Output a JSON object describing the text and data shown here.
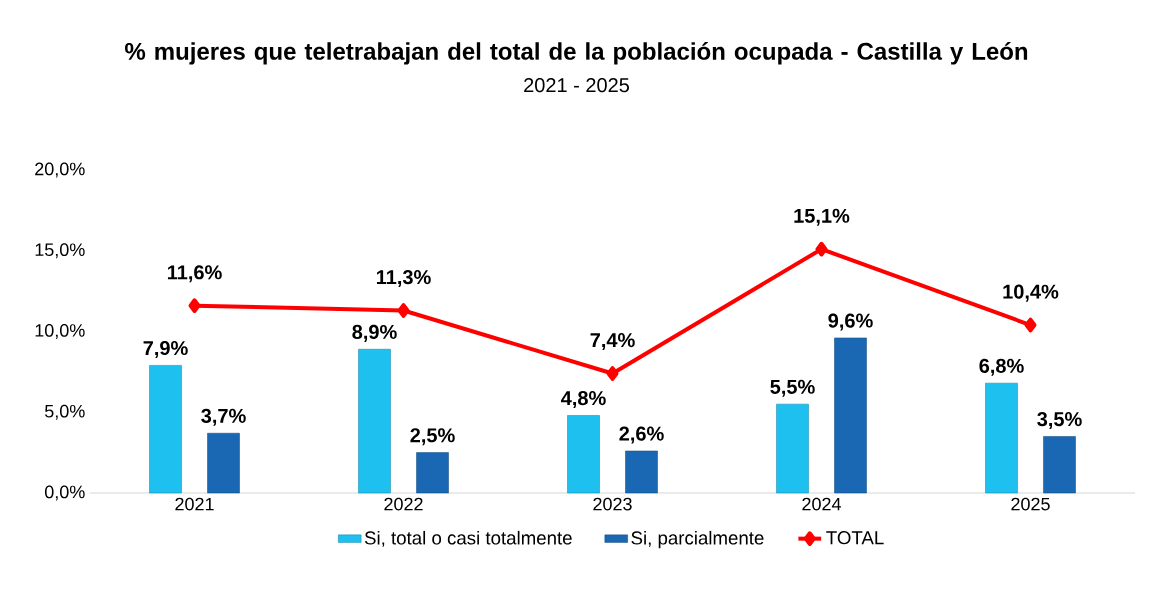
{
  "chart_data": {
    "type": "bar",
    "title": "% mujeres que teletrabajan del total de la población ocupada - Castilla y León",
    "subtitle": "2021 - 2025",
    "categories": [
      "2021",
      "2022",
      "2023",
      "2024",
      "2025"
    ],
    "series": [
      {
        "name": "Si, total o casi totalmente",
        "color": "#1ec0f0",
        "values": [
          7.9,
          8.9,
          4.8,
          5.5,
          6.8
        ],
        "value_labels": [
          "7,9%",
          "8,9%",
          "4,8%",
          "5,5%",
          "6,8%"
        ]
      },
      {
        "name": "Si, parcialmente",
        "color": "#1a68b4",
        "values": [
          3.7,
          2.5,
          2.6,
          9.6,
          3.5
        ],
        "value_labels": [
          "3,7%",
          "2,5%",
          "2,6%",
          "9,6%",
          "3,5%"
        ]
      },
      {
        "name": "TOTAL",
        "type": "line",
        "color": "#ff0000",
        "marker": "diamond",
        "values": [
          11.6,
          11.3,
          7.4,
          15.1,
          10.4
        ],
        "value_labels": [
          "11,6%",
          "11,3%",
          "7,4%",
          "15,1%",
          "10,4%"
        ]
      }
    ],
    "ylim": [
      0,
      20
    ],
    "yticks": [
      {
        "value": 0,
        "label": "0,0%"
      },
      {
        "value": 5,
        "label": "5,0%"
      },
      {
        "value": 10,
        "label": "10,0%"
      },
      {
        "value": 15,
        "label": "15,0%"
      },
      {
        "value": 20,
        "label": "20,0%"
      }
    ],
    "legend": "bottom"
  }
}
